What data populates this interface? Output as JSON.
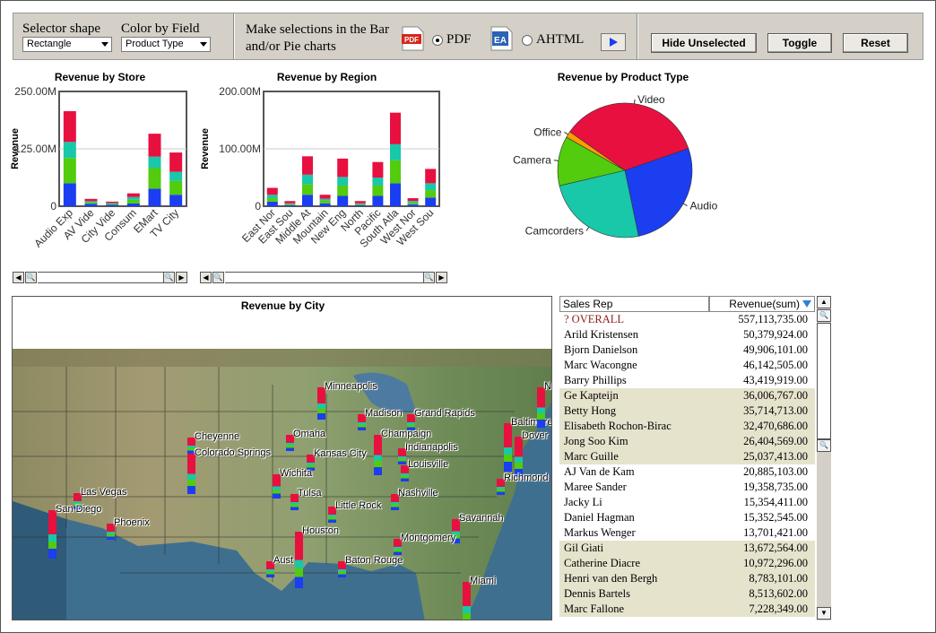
{
  "toolbar": {
    "selector_shape_label": "Selector shape",
    "selector_shape_value": "Rectangle",
    "color_by_label": "Color by Field",
    "color_by_value": "Product Type",
    "instruction_line1": "Make selections in the Bar",
    "instruction_line2": "and/or Pie charts",
    "pdf_label": "PDF",
    "ahtml_label": "AHTML",
    "pdf_icon_text": "PDF",
    "ahtml_icon_text": "EA",
    "format_selected": "PDF",
    "hide_unselected_label": "Hide Unselected",
    "toggle_label": "Toggle",
    "reset_label": "Reset"
  },
  "colors": {
    "video": "#e8103f",
    "camcorders": "#19c7a9",
    "camera": "#52cc0c",
    "office": "#ff9d00",
    "audio": "#1a3ef0",
    "table_alt_row": "#e6e3cd",
    "sort_arrow": "#2f7fd7"
  },
  "chart_data": [
    {
      "type": "bar",
      "title": "Revenue by Store",
      "ylabel": "Revenue",
      "ytick_labels": [
        "250.00M",
        "125.00M",
        "0"
      ],
      "ylim": [
        0,
        250000000
      ],
      "categories": [
        "Audio Exp",
        "AV Vide",
        "City Vide",
        "Consum",
        "EMart",
        "TV City"
      ],
      "series": [
        {
          "name": "Audio",
          "values": [
            50000000,
            5000000,
            3000000,
            6000000,
            38000000,
            25000000
          ]
        },
        {
          "name": "Camera",
          "values": [
            55000000,
            3000000,
            2000000,
            8000000,
            45000000,
            30000000
          ]
        },
        {
          "name": "Camcorders",
          "values": [
            35000000,
            3000000,
            2000000,
            6000000,
            25000000,
            20000000
          ]
        },
        {
          "name": "Video",
          "values": [
            67000000,
            5000000,
            3000000,
            8000000,
            50000000,
            42000000
          ]
        }
      ],
      "grid": true,
      "legend": "none"
    },
    {
      "type": "bar",
      "title": "Revenue by Region",
      "ylabel": "Revenue",
      "ytick_labels": [
        "200.00M",
        "100.00M",
        "0"
      ],
      "ylim": [
        0,
        200000000
      ],
      "categories": [
        "East Nor",
        "East Sou",
        "Middle At",
        "Mountain",
        "New Eng",
        "North",
        "Pacific",
        "South Atla",
        "West Nor",
        "West Sou"
      ],
      "series": [
        {
          "name": "Audio",
          "values": [
            8000000,
            2000000,
            20000000,
            5000000,
            18000000,
            2000000,
            18000000,
            40000000,
            3000000,
            15000000
          ]
        },
        {
          "name": "Camera",
          "values": [
            6000000,
            2000000,
            18000000,
            5000000,
            18000000,
            2000000,
            18000000,
            40000000,
            3000000,
            13000000
          ]
        },
        {
          "name": "Camcorders",
          "values": [
            6000000,
            1000000,
            17000000,
            3000000,
            15000000,
            1000000,
            14000000,
            28000000,
            3000000,
            12000000
          ]
        },
        {
          "name": "Video",
          "values": [
            12000000,
            4000000,
            32000000,
            7000000,
            32000000,
            4000000,
            27000000,
            55000000,
            5000000,
            25000000
          ]
        }
      ],
      "grid": true,
      "legend": "none"
    },
    {
      "type": "pie",
      "title": "Revenue by Product Type",
      "labels": [
        "Video",
        "Audio",
        "Camcorders",
        "Camera",
        "Office"
      ],
      "values": [
        35.0,
        27.0,
        24.6,
        11.9,
        1.5
      ]
    }
  ],
  "map": {
    "title": "Revenue by City",
    "cities": [
      {
        "name": "Minneapolis"
      },
      {
        "name": "Madison"
      },
      {
        "name": "Grand Rapids"
      },
      {
        "name": "Cheyenne"
      },
      {
        "name": "Omaha"
      },
      {
        "name": "Champaign"
      },
      {
        "name": "Baltimore"
      },
      {
        "name": "Colorado Springs"
      },
      {
        "name": "Kansas City"
      },
      {
        "name": "Indianapolis"
      },
      {
        "name": "Dover"
      },
      {
        "name": "Louisville"
      },
      {
        "name": "Wichita"
      },
      {
        "name": "Richmond"
      },
      {
        "name": "Las Vegas"
      },
      {
        "name": "Tulsa"
      },
      {
        "name": "Nashville"
      },
      {
        "name": "San Diego"
      },
      {
        "name": "Little Rock"
      },
      {
        "name": "Phoenix"
      },
      {
        "name": "Savannah"
      },
      {
        "name": "Houston"
      },
      {
        "name": "Montgomery"
      },
      {
        "name": "Aust"
      },
      {
        "name": "Baton Rouge"
      },
      {
        "name": "Miami"
      },
      {
        "name": "Ne"
      }
    ]
  },
  "table": {
    "col_rep": "Sales Rep",
    "col_revenue": "Revenue(sum)",
    "overall_label": "?  OVERALL",
    "overall_value": "557,113,735.00",
    "rows": [
      {
        "rep": "Arild Kristensen",
        "rev": "50,379,924.00",
        "alt": false
      },
      {
        "rep": "Bjorn Danielson",
        "rev": "49,906,101.00",
        "alt": false
      },
      {
        "rep": "Marc Wacongne",
        "rev": "46,142,505.00",
        "alt": false
      },
      {
        "rep": "Barry Phillips",
        "rev": "43,419,919.00",
        "alt": false
      },
      {
        "rep": "Ge Kapteijn",
        "rev": "36,006,767.00",
        "alt": true
      },
      {
        "rep": "Betty Hong",
        "rev": "35,714,713.00",
        "alt": true
      },
      {
        "rep": "Elisabeth Rochon-Birac",
        "rev": "32,470,686.00",
        "alt": true
      },
      {
        "rep": "Jong Soo Kim",
        "rev": "26,404,569.00",
        "alt": true
      },
      {
        "rep": "Marc Guille",
        "rev": "25,037,413.00",
        "alt": true
      },
      {
        "rep": "AJ Van de Kam",
        "rev": "20,885,103.00",
        "alt": false
      },
      {
        "rep": "Maree Sander",
        "rev": "19,358,735.00",
        "alt": false
      },
      {
        "rep": "Jacky Li",
        "rev": "15,354,411.00",
        "alt": false
      },
      {
        "rep": "Daniel Hagman",
        "rev": "15,352,545.00",
        "alt": false
      },
      {
        "rep": "Markus Wenger",
        "rev": "13,701,421.00",
        "alt": false
      },
      {
        "rep": "Gil Giati",
        "rev": "13,672,564.00",
        "alt": true
      },
      {
        "rep": "Catherine Diacre",
        "rev": "10,972,296.00",
        "alt": true
      },
      {
        "rep": "Henri van den Bergh",
        "rev": "8,783,101.00",
        "alt": true
      },
      {
        "rep": "Dennis Bartels",
        "rev": "8,513,602.00",
        "alt": true
      },
      {
        "rep": "Marc Fallone",
        "rev": "7,228,349.00",
        "alt": true
      }
    ]
  }
}
